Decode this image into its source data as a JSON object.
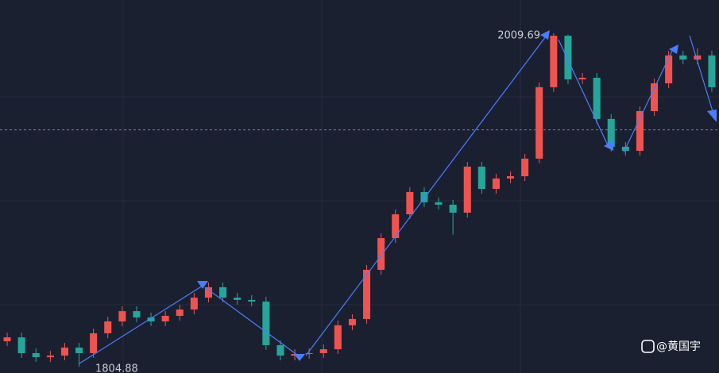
{
  "chart_data": {
    "type": "candlestick",
    "open": [
      1820.5,
      1822.9,
      1813.2,
      1810.7,
      1811.7,
      1816.6,
      1813.2,
      1825.4,
      1832.7,
      1839.0,
      1835.1,
      1832.7,
      1836.1,
      1840.0,
      1847.3,
      1853.7,
      1847.3,
      1845.9,
      1844.9,
      1818.1,
      1811.7,
      1812.7,
      1813.2,
      1815.6,
      1830.3,
      1834.2,
      1864.4,
      1883.9,
      1898.5,
      1912.2,
      1905.9,
      1904.4,
      1899.5,
      1927.8,
      1914.1,
      1920.5,
      1921.9,
      1932.7,
      1976.6,
      2008.2,
      1981.4,
      1982.4,
      1957.1,
      1940.0,
      1937.5,
      1961.9,
      1979.0,
      1996.1,
      1993.6,
      1996.1
    ],
    "high": [
      1825.8,
      1825.8,
      1816.1,
      1814.6,
      1819.5,
      1819.5,
      1828.3,
      1835.6,
      1841.9,
      1841.9,
      1838.0,
      1839.0,
      1842.9,
      1850.2,
      1856.6,
      1856.6,
      1850.2,
      1848.8,
      1847.8,
      1821.0,
      1815.6,
      1816.1,
      1818.5,
      1833.2,
      1837.1,
      1867.3,
      1886.8,
      1901.4,
      1915.1,
      1915.1,
      1908.8,
      1907.3,
      1930.7,
      1930.7,
      1923.4,
      1924.8,
      1935.6,
      1979.5,
      2009.69,
      2008.9,
      1985.3,
      1985.3,
      1960.0,
      1942.9,
      1964.8,
      1981.9,
      1999.0,
      1999.0,
      2000.5,
      1999.0
    ],
    "low": [
      1817.6,
      1810.3,
      1807.8,
      1807.8,
      1808.8,
      1804.88,
      1810.3,
      1822.5,
      1829.8,
      1832.2,
      1829.8,
      1829.8,
      1833.2,
      1837.1,
      1844.4,
      1844.4,
      1843.0,
      1842.0,
      1815.2,
      1808.8,
      1808.8,
      1809.8,
      1810.3,
      1812.7,
      1827.4,
      1831.3,
      1861.5,
      1881.0,
      1895.6,
      1903.0,
      1901.5,
      1886.0,
      1896.6,
      1911.2,
      1911.2,
      1917.6,
      1919.0,
      1929.8,
      1973.7,
      1978.5,
      1978.5,
      1954.2,
      1937.1,
      1934.6,
      1934.6,
      1959.0,
      1976.1,
      1990.7,
      1990.7,
      1973.7
    ],
    "close": [
      1822.9,
      1813.2,
      1810.7,
      1811.7,
      1816.6,
      1813.2,
      1825.4,
      1832.7,
      1839.0,
      1835.1,
      1832.7,
      1836.1,
      1840.0,
      1847.3,
      1853.7,
      1847.3,
      1845.9,
      1844.9,
      1818.1,
      1811.7,
      1812.7,
      1813.2,
      1815.6,
      1830.3,
      1834.2,
      1864.4,
      1883.9,
      1898.5,
      1912.2,
      1905.9,
      1904.4,
      1899.5,
      1927.8,
      1914.1,
      1920.5,
      1921.9,
      1932.7,
      1976.6,
      2008.2,
      1981.4,
      1982.4,
      1957.1,
      1940.0,
      1937.5,
      1961.9,
      1979.0,
      1996.1,
      1993.6,
      1996.1,
      1976.6
    ],
    "up_color": "#ef5350",
    "down_color": "#26a69a",
    "ylim": [
      1801,
      2030.17
    ],
    "price_line": 1950.4,
    "watermark": "@黄国宇"
  }
}
